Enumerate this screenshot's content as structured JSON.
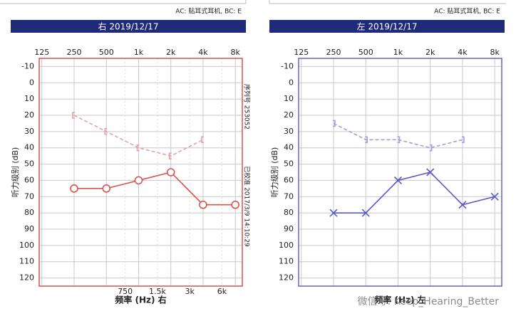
{
  "chart_data": [
    {
      "type": "audiogram",
      "header": "右 2019/12/17",
      "ac_note": "AC: 贴耳式耳机, BC: E",
      "y_label": "听力级别 (dB)",
      "x_label": "频率 (Hz) 右",
      "side_notes": [
        "序列号 253052",
        "已校准 2017/3/9 14:10:29"
      ],
      "frame_color": "#d9534f",
      "x_log": true,
      "xlim": [
        118,
        9300
      ],
      "ylim": [
        -15,
        125
      ],
      "y_inverted": true,
      "xticks": [
        125,
        250,
        500,
        {
          "value": 1000,
          "label": "1k"
        },
        {
          "value": 2000,
          "label": "2k"
        },
        {
          "value": 4000,
          "label": "4k"
        },
        {
          "value": 8000,
          "label": "8k"
        }
      ],
      "xticks_bottom": [
        750,
        {
          "value": 1500,
          "label": "1.5k"
        },
        {
          "value": 3000,
          "label": "3k"
        },
        {
          "value": 6000,
          "label": "6k"
        }
      ],
      "yticks": [
        -10,
        0,
        10,
        20,
        30,
        40,
        50,
        60,
        70,
        80,
        90,
        100,
        110,
        120
      ],
      "x": [
        250,
        500,
        1000,
        2000,
        4000,
        8000
      ],
      "series": [
        {
          "color": "#d9534f",
          "marker": "circle",
          "dashed": false,
          "values": [
            65,
            65,
            60,
            55,
            75,
            75
          ]
        },
        {
          "color": "#e3a3a3",
          "marker": "bracket-left",
          "dashed": true,
          "values": [
            20,
            30,
            40,
            45,
            35,
            null
          ]
        }
      ]
    },
    {
      "type": "audiogram",
      "header": "左 2019/12/17",
      "ac_note": "AC: 贴耳式耳机, BC: E",
      "y_label": "听力级别 (dB)",
      "x_label": "频率 (Hz) 左",
      "frame_color": "#6262c4",
      "x_log": true,
      "xlim": [
        118,
        9300
      ],
      "ylim": [
        -15,
        125
      ],
      "y_inverted": true,
      "xticks": [
        125,
        250,
        500,
        {
          "value": 1000,
          "label": "1k"
        },
        {
          "value": 2000,
          "label": "2k"
        },
        {
          "value": 4000,
          "label": "4k"
        },
        {
          "value": 8000,
          "label": "8k"
        }
      ],
      "yticks": [
        -10,
        0,
        10,
        20,
        30,
        40,
        50,
        60,
        70,
        80,
        90,
        100,
        110,
        120
      ],
      "x": [
        250,
        500,
        1000,
        2000,
        4000,
        8000
      ],
      "series": [
        {
          "color": "#5a5ac4",
          "marker": "cross",
          "dashed": false,
          "values": [
            80,
            80,
            60,
            55,
            75,
            70
          ]
        },
        {
          "color": "#a0a0da",
          "marker": "bracket-right",
          "dashed": true,
          "values": [
            25,
            35,
            35,
            40,
            35,
            null
          ]
        }
      ]
    }
  ],
  "watermark": "微信号: Keep_Hearing_Better"
}
